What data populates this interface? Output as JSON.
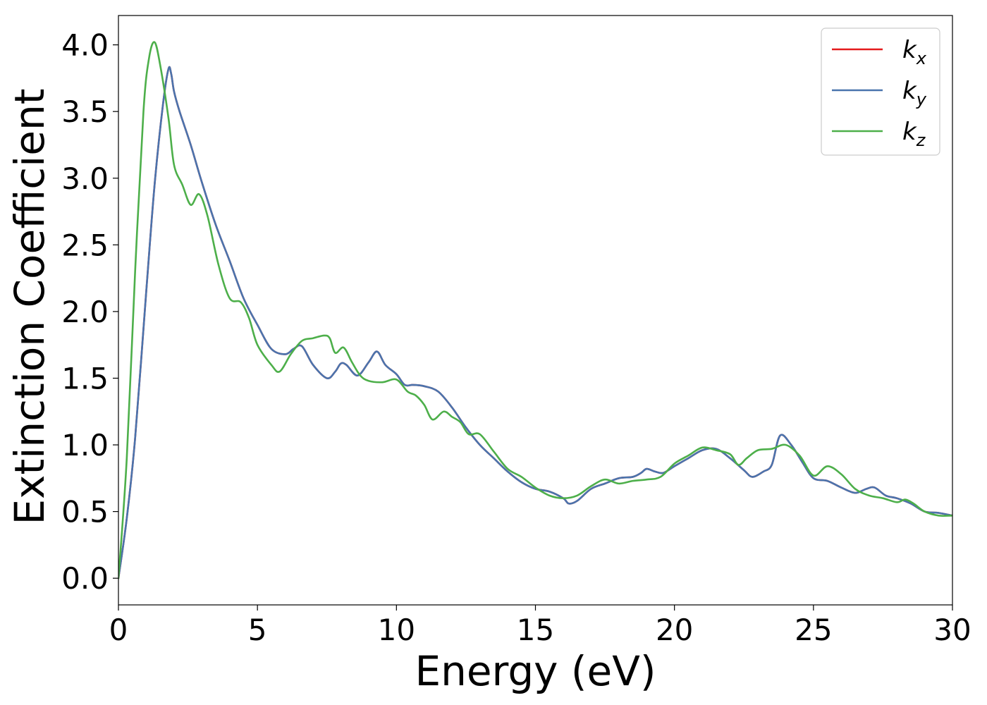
{
  "chart_data": {
    "type": "line",
    "xlabel": "Energy (eV)",
    "ylabel": "Extinction Coefficient",
    "xlim": [
      0,
      30
    ],
    "ylim": [
      -0.2,
      4.22
    ],
    "xticks": [
      0,
      5,
      10,
      15,
      20,
      25,
      30
    ],
    "xtick_labels": [
      "0",
      "5",
      "10",
      "15",
      "20",
      "25",
      "30"
    ],
    "yticks": [
      0.0,
      0.5,
      1.0,
      1.5,
      2.0,
      2.5,
      3.0,
      3.5,
      4.0
    ],
    "ytick_labels": [
      "0.0",
      "0.5",
      "1.0",
      "1.5",
      "2.0",
      "2.5",
      "3.0",
      "3.5",
      "4.0"
    ],
    "grid": false,
    "legend_position": "top-right",
    "series": [
      {
        "name": "k",
        "subscript": "x",
        "color": "#e41a1c",
        "x": [
          0,
          0.3,
          0.6,
          1.0,
          1.3,
          1.6,
          1.8,
          1.9,
          2.0,
          2.2,
          2.6,
          3.0,
          3.5,
          4.0,
          4.5,
          5.0,
          5.5,
          6.0,
          6.3,
          6.6,
          7.0,
          7.5,
          7.8,
          8.0,
          8.2,
          8.6,
          9.0,
          9.3,
          9.6,
          10.0,
          10.3,
          10.6,
          11.0,
          11.5,
          12.0,
          12.5,
          13.0,
          13.5,
          14.0,
          14.5,
          15.0,
          15.5,
          16.0,
          16.2,
          16.5,
          17.0,
          17.5,
          18.0,
          18.5,
          18.8,
          19.0,
          19.3,
          19.6,
          20.0,
          20.5,
          21.0,
          21.5,
          22.0,
          22.5,
          22.8,
          23.2,
          23.5,
          23.8,
          24.2,
          24.6,
          25.0,
          25.5,
          26.0,
          26.5,
          26.9,
          27.2,
          27.6,
          28.0,
          28.5,
          29.0,
          29.5,
          30.0
        ],
        "y": [
          0.0,
          0.45,
          1.05,
          2.15,
          2.95,
          3.55,
          3.82,
          3.78,
          3.65,
          3.5,
          3.25,
          2.97,
          2.65,
          2.38,
          2.1,
          1.9,
          1.72,
          1.68,
          1.72,
          1.74,
          1.6,
          1.5,
          1.55,
          1.61,
          1.6,
          1.52,
          1.62,
          1.7,
          1.6,
          1.53,
          1.45,
          1.45,
          1.44,
          1.4,
          1.28,
          1.13,
          1.0,
          0.9,
          0.8,
          0.72,
          0.67,
          0.65,
          0.6,
          0.56,
          0.58,
          0.67,
          0.71,
          0.75,
          0.76,
          0.79,
          0.82,
          0.8,
          0.79,
          0.84,
          0.9,
          0.96,
          0.97,
          0.9,
          0.81,
          0.76,
          0.8,
          0.85,
          1.07,
          1.0,
          0.87,
          0.75,
          0.73,
          0.68,
          0.64,
          0.67,
          0.68,
          0.62,
          0.6,
          0.56,
          0.5,
          0.49,
          0.47
        ]
      },
      {
        "name": "k",
        "subscript": "y",
        "color": "#4a74ad",
        "x": [
          0,
          0.3,
          0.6,
          1.0,
          1.3,
          1.6,
          1.8,
          1.9,
          2.0,
          2.2,
          2.6,
          3.0,
          3.5,
          4.0,
          4.5,
          5.0,
          5.5,
          6.0,
          6.3,
          6.6,
          7.0,
          7.5,
          7.8,
          8.0,
          8.2,
          8.6,
          9.0,
          9.3,
          9.6,
          10.0,
          10.3,
          10.6,
          11.0,
          11.5,
          12.0,
          12.5,
          13.0,
          13.5,
          14.0,
          14.5,
          15.0,
          15.5,
          16.0,
          16.2,
          16.5,
          17.0,
          17.5,
          18.0,
          18.5,
          18.8,
          19.0,
          19.3,
          19.6,
          20.0,
          20.5,
          21.0,
          21.5,
          22.0,
          22.5,
          22.8,
          23.2,
          23.5,
          23.8,
          24.2,
          24.6,
          25.0,
          25.5,
          26.0,
          26.5,
          26.9,
          27.2,
          27.6,
          28.0,
          28.5,
          29.0,
          29.5,
          30.0
        ],
        "y": [
          0.0,
          0.45,
          1.05,
          2.15,
          2.95,
          3.55,
          3.82,
          3.78,
          3.65,
          3.5,
          3.25,
          2.97,
          2.65,
          2.38,
          2.1,
          1.9,
          1.72,
          1.68,
          1.72,
          1.74,
          1.6,
          1.5,
          1.55,
          1.61,
          1.6,
          1.52,
          1.62,
          1.7,
          1.6,
          1.53,
          1.45,
          1.45,
          1.44,
          1.4,
          1.28,
          1.13,
          1.0,
          0.9,
          0.8,
          0.72,
          0.67,
          0.65,
          0.6,
          0.56,
          0.58,
          0.67,
          0.71,
          0.75,
          0.76,
          0.79,
          0.82,
          0.8,
          0.79,
          0.84,
          0.9,
          0.96,
          0.97,
          0.9,
          0.81,
          0.76,
          0.8,
          0.85,
          1.07,
          1.0,
          0.87,
          0.75,
          0.73,
          0.68,
          0.64,
          0.67,
          0.68,
          0.62,
          0.6,
          0.56,
          0.5,
          0.49,
          0.47
        ]
      },
      {
        "name": "k",
        "subscript": "z",
        "color": "#4daf4a",
        "x": [
          0,
          0.3,
          0.6,
          0.9,
          1.1,
          1.3,
          1.5,
          1.8,
          2.0,
          2.3,
          2.6,
          2.9,
          3.2,
          3.6,
          4.0,
          4.4,
          4.7,
          5.0,
          5.5,
          5.8,
          6.2,
          6.6,
          7.0,
          7.4,
          7.6,
          7.8,
          8.1,
          8.4,
          8.7,
          9.0,
          9.5,
          10.0,
          10.4,
          10.7,
          11.0,
          11.3,
          11.7,
          12.0,
          12.3,
          12.6,
          13.0,
          13.5,
          14.0,
          14.5,
          15.0,
          15.5,
          16.0,
          16.5,
          17.0,
          17.5,
          18.0,
          18.5,
          19.0,
          19.5,
          20.0,
          20.5,
          21.0,
          21.5,
          22.0,
          22.3,
          22.6,
          23.0,
          23.5,
          24.0,
          24.5,
          25.0,
          25.5,
          26.0,
          26.5,
          27.0,
          27.5,
          28.0,
          28.3,
          28.6,
          29.0,
          29.5,
          30.0
        ],
        "y": [
          0.0,
          0.9,
          2.3,
          3.5,
          3.9,
          4.02,
          3.85,
          3.45,
          3.1,
          2.95,
          2.8,
          2.88,
          2.72,
          2.35,
          2.1,
          2.07,
          1.95,
          1.75,
          1.6,
          1.55,
          1.68,
          1.78,
          1.8,
          1.82,
          1.8,
          1.69,
          1.73,
          1.62,
          1.52,
          1.48,
          1.47,
          1.49,
          1.4,
          1.37,
          1.3,
          1.19,
          1.25,
          1.21,
          1.17,
          1.08,
          1.08,
          0.95,
          0.82,
          0.76,
          0.68,
          0.62,
          0.6,
          0.62,
          0.69,
          0.74,
          0.71,
          0.73,
          0.74,
          0.76,
          0.86,
          0.92,
          0.98,
          0.96,
          0.93,
          0.85,
          0.9,
          0.96,
          0.97,
          1.0,
          0.92,
          0.77,
          0.84,
          0.78,
          0.67,
          0.62,
          0.6,
          0.57,
          0.59,
          0.56,
          0.5,
          0.47,
          0.47
        ]
      }
    ]
  }
}
